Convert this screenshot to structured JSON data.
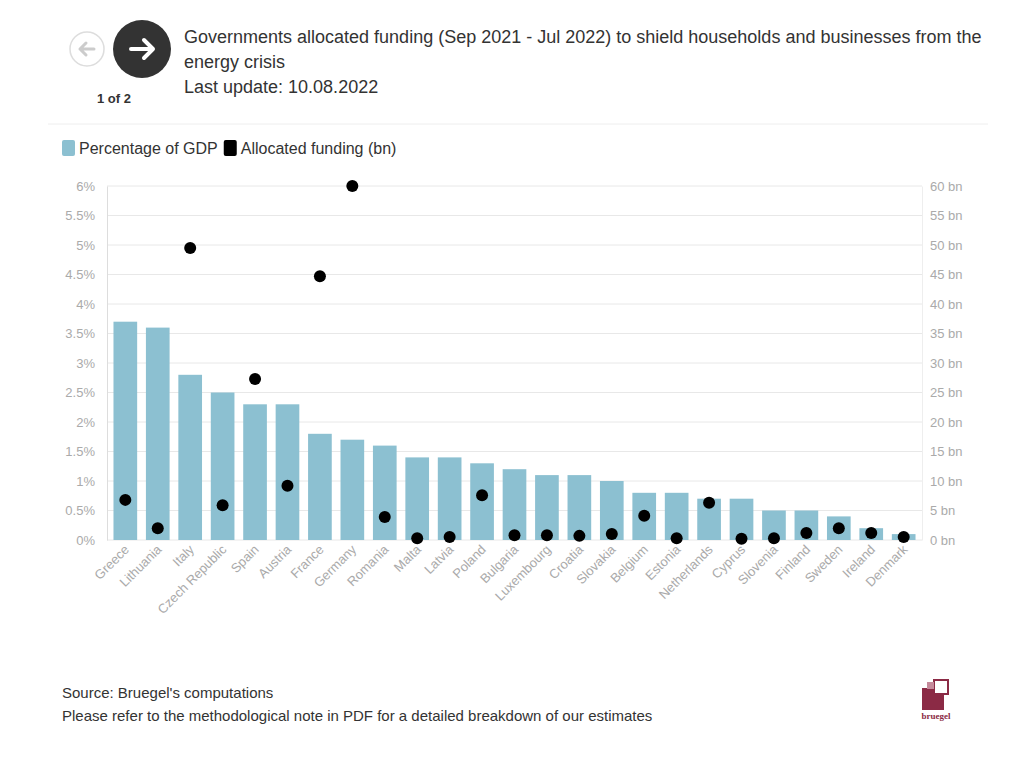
{
  "chart_data": {
    "type": "bar",
    "page_indicator": "1 of 2",
    "title": "Governments allocated funding (Sep 2021 - Jul 2022) to shield households and businesses from the energy crisis",
    "subtitle": "Last update: 10.08.2022",
    "source": "Source: Bruegel's computations",
    "note": "Please refer to the methodological note in PDF for a detailed breakdown of our estimates",
    "brand": "bruegel",
    "categories": [
      "Greece",
      "Lithuania",
      "Italy",
      "Czech Republic",
      "Spain",
      "Austria",
      "France",
      "Germany",
      "Romania",
      "Malta",
      "Latvia",
      "Poland",
      "Bulgaria",
      "Luxembourg",
      "Croatia",
      "Slovakia",
      "Belgium",
      "Estonia",
      "Netherlands",
      "Cyprus",
      "Slovenia",
      "Finland",
      "Sweden",
      "Ireland",
      "Denmark"
    ],
    "series": [
      {
        "name": "Percentage of GDP",
        "type": "bar",
        "color": "#8cc0d1",
        "values": [
          3.7,
          3.6,
          2.8,
          2.5,
          2.3,
          2.3,
          1.8,
          1.7,
          1.6,
          1.4,
          1.4,
          1.3,
          1.2,
          1.1,
          1.1,
          1.0,
          0.8,
          0.8,
          0.7,
          0.7,
          0.5,
          0.5,
          0.4,
          0.2,
          0.1
        ]
      },
      {
        "name": "Allocated funding (bn)",
        "type": "scatter",
        "color": "#000000",
        "axis": "y2",
        "marker": "circle",
        "values": [
          6.8,
          2.0,
          49.5,
          5.9,
          27.3,
          9.2,
          44.7,
          60,
          3.9,
          0.3,
          0.5,
          7.6,
          0.8,
          0.8,
          0.7,
          1.0,
          4.1,
          0.3,
          6.3,
          0.2,
          0.3,
          1.2,
          2.0,
          1.2,
          0.5
        ]
      }
    ],
    "ylim": [
      0,
      6
    ],
    "yticks": [
      {
        "value": 0,
        "label": "0%"
      },
      {
        "value": 0.5,
        "label": "0.5%"
      },
      {
        "value": 1,
        "label": "1%"
      },
      {
        "value": 1.5,
        "label": "1.5%"
      },
      {
        "value": 2,
        "label": "2%"
      },
      {
        "value": 2.5,
        "label": "2.5%"
      },
      {
        "value": 3,
        "label": "3%"
      },
      {
        "value": 3.5,
        "label": "3.5%"
      },
      {
        "value": 4,
        "label": "4%"
      },
      {
        "value": 4.5,
        "label": "4.5%"
      },
      {
        "value": 5,
        "label": "5%"
      },
      {
        "value": 5.5,
        "label": "5.5%"
      },
      {
        "value": 6,
        "label": "6%"
      }
    ],
    "y2lim": [
      0,
      60
    ],
    "y2ticks": [
      {
        "value": 0,
        "label": "0 bn"
      },
      {
        "value": 5,
        "label": "5 bn"
      },
      {
        "value": 10,
        "label": "10 bn"
      },
      {
        "value": 15,
        "label": "15 bn"
      },
      {
        "value": 20,
        "label": "20 bn"
      },
      {
        "value": 25,
        "label": "25 bn"
      },
      {
        "value": 30,
        "label": "30 bn"
      },
      {
        "value": 35,
        "label": "35 bn"
      },
      {
        "value": 40,
        "label": "40 bn"
      },
      {
        "value": 45,
        "label": "45 bn"
      },
      {
        "value": 50,
        "label": "50 bn"
      },
      {
        "value": 55,
        "label": "55 bn"
      },
      {
        "value": 60,
        "label": "60 bn"
      }
    ],
    "grid": true,
    "legend": "top-left"
  }
}
